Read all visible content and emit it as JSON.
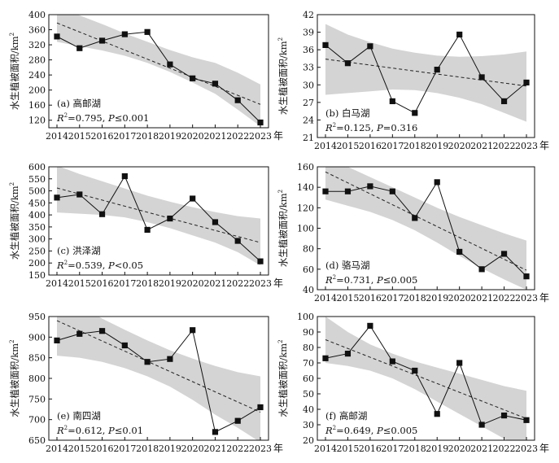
{
  "figure": {
    "x_unit": "年",
    "ylabel_text": "水生植被面积/km",
    "ylabel_sup": "2"
  },
  "chart_data": [
    {
      "type": "line",
      "panel": "a",
      "label": "(a) 高邮湖",
      "stat_r2": "0.795",
      "stat_p": "≤0.001",
      "x": [
        2014,
        2015,
        2016,
        2017,
        2018,
        2019,
        2020,
        2021,
        2022,
        2023
      ],
      "values": [
        342,
        311,
        331,
        348,
        354,
        268,
        231,
        217,
        173,
        114
      ],
      "trend": [
        378,
        162
      ],
      "band_upper": [
        420,
        398,
        375,
        350,
        328,
        306,
        287,
        272,
        246,
        215
      ],
      "band_lower": [
        328,
        316,
        305,
        291,
        272,
        248,
        220,
        190,
        148,
        104
      ],
      "ylim": [
        100,
        400
      ],
      "yticks": [
        120,
        160,
        200,
        240,
        280,
        320,
        360,
        400
      ]
    },
    {
      "type": "line",
      "panel": "b",
      "label": "(b) 白马湖",
      "stat_r2": "0.125",
      "stat_p": "=0.316",
      "x": [
        2014,
        2015,
        2016,
        2017,
        2018,
        2019,
        2020,
        2021,
        2022,
        2023
      ],
      "values": [
        36.8,
        33.7,
        36.6,
        27.2,
        25.2,
        32.6,
        38.6,
        31.3,
        27.2,
        30.4
      ],
      "trend": [
        34.4,
        29.8
      ],
      "band_upper": [
        40.4,
        38.6,
        37.3,
        36.2,
        35.5,
        35.0,
        34.8,
        34.9,
        35.2,
        35.7
      ],
      "band_lower": [
        28.3,
        28.6,
        28.9,
        29.2,
        29.1,
        28.6,
        27.8,
        26.7,
        25.2,
        23.7
      ],
      "ylim": [
        21,
        42
      ],
      "yticks": [
        21,
        24,
        27,
        30,
        33,
        36,
        39,
        42
      ]
    },
    {
      "type": "line",
      "panel": "c",
      "label": "(c) 洪泽湖",
      "stat_r2": "0.539",
      "stat_p": "<0.05",
      "x": [
        2014,
        2015,
        2016,
        2017,
        2018,
        2019,
        2020,
        2021,
        2022,
        2023
      ],
      "values": [
        472,
        485,
        403,
        561,
        338,
        385,
        468,
        370,
        292,
        207
      ],
      "trend": [
        512,
        285
      ],
      "band_upper": [
        605,
        570,
        540,
        510,
        480,
        455,
        432,
        412,
        395,
        385
      ],
      "band_lower": [
        410,
        405,
        400,
        390,
        370,
        345,
        315,
        285,
        245,
        190
      ],
      "ylim": [
        150,
        600
      ],
      "yticks": [
        150,
        200,
        250,
        300,
        350,
        400,
        450,
        500,
        550,
        600
      ]
    },
    {
      "type": "line",
      "panel": "d",
      "label": "(d) 骆马湖",
      "stat_r2": "0.731",
      "stat_p": "≤0.005",
      "x": [
        2014,
        2015,
        2016,
        2017,
        2018,
        2019,
        2020,
        2021,
        2022,
        2023
      ],
      "values": [
        136,
        136,
        141,
        136,
        110,
        145,
        77,
        60,
        75,
        53
      ],
      "trend": [
        155,
        59
      ],
      "band_upper": [
        170,
        160,
        150,
        140,
        130,
        120,
        111,
        103,
        95,
        88
      ],
      "band_lower": [
        128,
        122,
        116,
        108,
        98,
        86,
        73,
        61,
        50,
        40
      ],
      "ylim": [
        40,
        160
      ],
      "yticks": [
        40,
        60,
        80,
        100,
        120,
        140,
        160
      ]
    },
    {
      "type": "line",
      "panel": "e",
      "label": "(e) 南四湖",
      "stat_r2": "0.612",
      "stat_p": "≤0.01",
      "x": [
        2014,
        2015,
        2016,
        2017,
        2018,
        2019,
        2020,
        2021,
        2022,
        2023
      ],
      "values": [
        892,
        908,
        915,
        880,
        840,
        847,
        917,
        670,
        697,
        730
      ],
      "trend": [
        940,
        718
      ],
      "band_upper": [
        1010,
        975,
        945,
        918,
        892,
        868,
        848,
        830,
        815,
        805
      ],
      "band_lower": [
        855,
        850,
        840,
        825,
        805,
        780,
        748,
        712,
        680,
        645
      ],
      "ylim": [
        650,
        950
      ],
      "yticks": [
        650,
        700,
        750,
        800,
        850,
        900,
        950
      ]
    },
    {
      "type": "line",
      "panel": "f",
      "label": "(f) 高邮湖",
      "stat_r2": "0.649",
      "stat_p": "≤0.005",
      "x": [
        2014,
        2015,
        2016,
        2017,
        2018,
        2019,
        2020,
        2021,
        2022,
        2023
      ],
      "values": [
        73,
        76,
        94,
        71,
        65,
        37,
        70,
        30,
        36,
        33
      ],
      "trend": [
        85,
        34
      ],
      "band_upper": [
        100,
        90,
        82,
        76,
        71,
        67,
        63,
        59,
        55,
        52
      ],
      "band_lower": [
        70,
        68,
        65,
        60,
        53,
        45,
        37,
        29,
        21,
        14
      ],
      "ylim": [
        20,
        100
      ],
      "yticks": [
        20,
        30,
        40,
        50,
        60,
        70,
        80,
        90,
        100
      ]
    }
  ]
}
